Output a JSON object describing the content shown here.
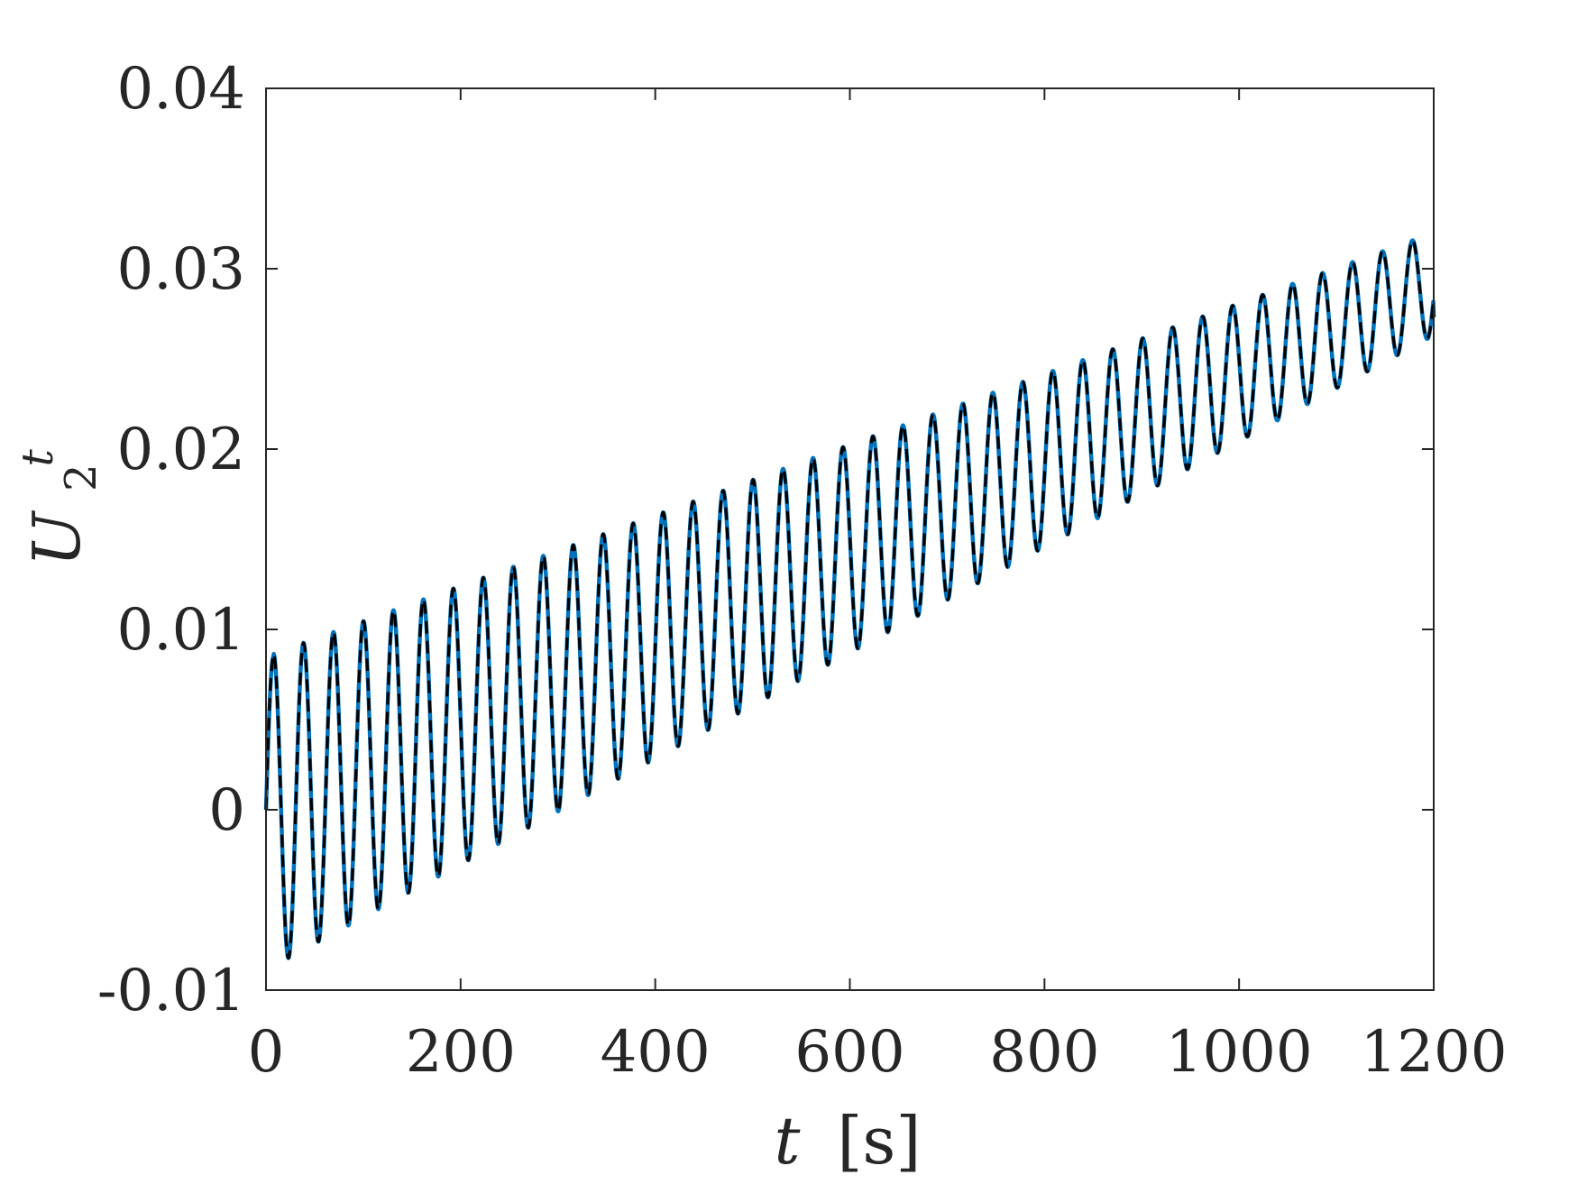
{
  "chart_data": {
    "type": "line",
    "title": "",
    "xlabel": "t [s]",
    "xlabel_var": "t",
    "xlabel_unit": "[s]",
    "ylabel": "U_2^t",
    "ylabel_base": "U",
    "ylabel_sup": "t",
    "ylabel_sub": "2",
    "xlim": [
      0,
      1200
    ],
    "ylim": [
      -0.01,
      0.04
    ],
    "xticks": [
      0,
      200,
      400,
      600,
      800,
      1000,
      1200
    ],
    "yticks": [
      -0.01,
      0,
      0.01,
      0.02,
      0.03,
      0.04
    ],
    "xtick_labels": [
      "0",
      "200",
      "400",
      "600",
      "800",
      "1000",
      "1200"
    ],
    "ytick_labels": [
      "-0.01",
      "0",
      "0.01",
      "0.02",
      "0.03",
      "0.04"
    ],
    "grid": false,
    "box": true,
    "series": [
      {
        "color": "#0072BD",
        "style": "solid",
        "oscillation": {
          "period_s": 30.8,
          "initial_value": 0.0,
          "first_peak": 0.0085,
          "first_trough": -0.0089,
          "final_peak": 0.032,
          "final_trough": 0.0263,
          "end_value": 0.0273
        }
      },
      {
        "color": "#000000",
        "style": "dashed",
        "oscillation": {
          "period_s": 30.8,
          "initial_value": 0.0,
          "first_peak": 0.0085,
          "first_trough": -0.0089,
          "final_peak": 0.032,
          "final_trough": 0.0263,
          "end_value": 0.0273
        }
      }
    ]
  }
}
